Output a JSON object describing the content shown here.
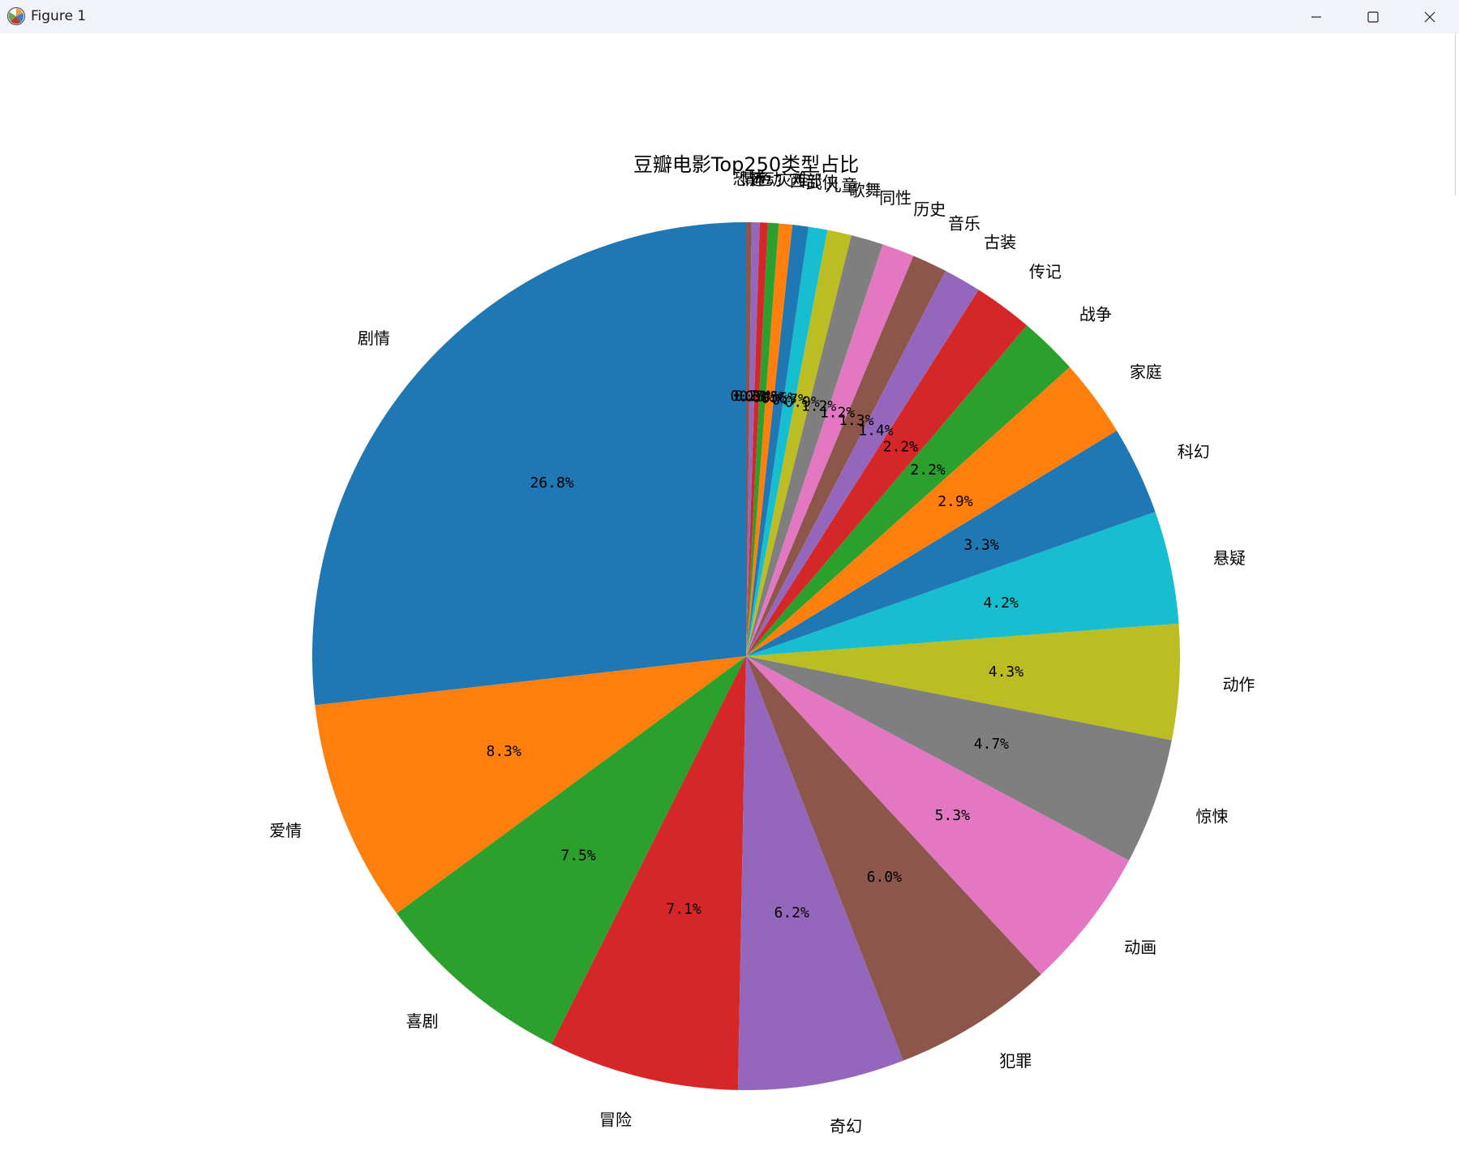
{
  "window": {
    "title": "Figure 1",
    "minimize_icon": "minimize-icon",
    "maximize_icon": "maximize-icon",
    "close_icon": "close-icon",
    "app_icon": "matplotlib-icon"
  },
  "chart_data": {
    "type": "pie",
    "title": "豆瓣电影Top250类型占比",
    "start_angle_deg": 90,
    "direction": "counterclockwise",
    "colors": [
      "#1f77b4",
      "#ff7f0e",
      "#2ca02c",
      "#d62728",
      "#9467bd",
      "#8c564b",
      "#e377c2",
      "#7f7f7f",
      "#bcbd22",
      "#17becf"
    ],
    "slices": [
      {
        "label": "剧情",
        "pct": 26.8,
        "pct_label": "26.8%"
      },
      {
        "label": "爱情",
        "pct": 8.3,
        "pct_label": "8.3%"
      },
      {
        "label": "喜剧",
        "pct": 7.5,
        "pct_label": "7.5%"
      },
      {
        "label": "冒险",
        "pct": 7.1,
        "pct_label": "7.1%"
      },
      {
        "label": "奇幻",
        "pct": 6.2,
        "pct_label": "6.2%"
      },
      {
        "label": "犯罪",
        "pct": 6.0,
        "pct_label": "6.0%"
      },
      {
        "label": "动画",
        "pct": 5.3,
        "pct_label": "5.3%"
      },
      {
        "label": "惊悚",
        "pct": 4.7,
        "pct_label": "4.7%"
      },
      {
        "label": "动作",
        "pct": 4.3,
        "pct_label": "4.3%"
      },
      {
        "label": "悬疑",
        "pct": 4.2,
        "pct_label": "4.2%"
      },
      {
        "label": "科幻",
        "pct": 3.3,
        "pct_label": "3.3%"
      },
      {
        "label": "家庭",
        "pct": 2.9,
        "pct_label": "2.9%"
      },
      {
        "label": "战争",
        "pct": 2.2,
        "pct_label": "2.2%"
      },
      {
        "label": "传记",
        "pct": 2.2,
        "pct_label": "2.2%"
      },
      {
        "label": "古装",
        "pct": 1.4,
        "pct_label": "1.4%"
      },
      {
        "label": "音乐",
        "pct": 1.3,
        "pct_label": "1.3%"
      },
      {
        "label": "历史",
        "pct": 1.2,
        "pct_label": "1.2%"
      },
      {
        "label": "同性",
        "pct": 1.2,
        "pct_label": "1.2%"
      },
      {
        "label": "歌舞",
        "pct": 0.9,
        "pct_label": "0.9%"
      },
      {
        "label": "儿童",
        "pct": 0.7,
        "pct_label": "0.7%"
      },
      {
        "label": "武侠",
        "pct": 0.6,
        "pct_label": "0.6%"
      },
      {
        "label": "西部",
        "pct": 0.5,
        "pct_label": "0.5%"
      },
      {
        "label": "灾难",
        "pct": 0.4,
        "pct_label": "0.4%"
      },
      {
        "label": "运动",
        "pct": 0.3,
        "pct_label": "0.3%"
      },
      {
        "label": "情色",
        "pct": 0.3,
        "pct_label": "0.3%"
      },
      {
        "label": "恐怖",
        "pct": 0.2,
        "pct_label": "0.2%"
      }
    ]
  }
}
